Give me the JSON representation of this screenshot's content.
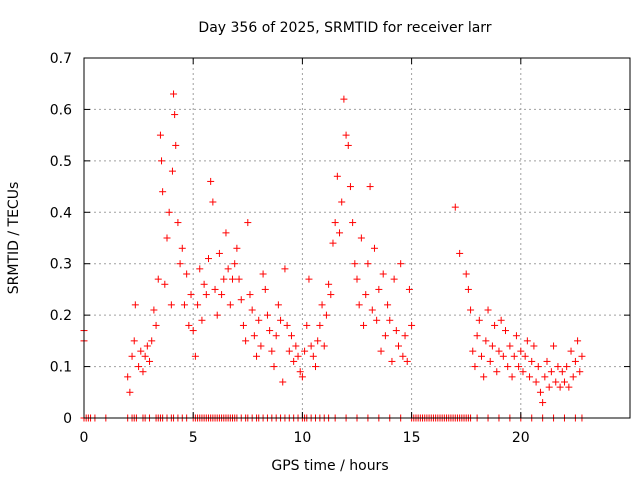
{
  "chart_data": {
    "type": "scatter",
    "title": "Day 356 of 2025, SRMTID for receiver larr",
    "xlabel": "GPS time / hours",
    "ylabel": "SRMTID / TECUs",
    "xlim": [
      0,
      25
    ],
    "ylim": [
      0,
      0.7
    ],
    "xticks": [
      0,
      5,
      10,
      15,
      20
    ],
    "yticks": [
      0,
      0.1,
      0.2,
      0.3,
      0.4,
      0.5,
      0.6,
      0.7
    ],
    "xtick_labels": [
      "0",
      "5",
      "10",
      "15",
      "20"
    ],
    "ytick_labels": [
      "0",
      "0.1",
      "0.2",
      "0.3",
      "0.4",
      "0.5",
      "0.6",
      "0.7"
    ],
    "grid": true,
    "marker": "+",
    "marker_color": "#ff0000",
    "series": [
      {
        "name": "SRMTID",
        "points": [
          [
            0.0,
            0.17
          ],
          [
            0.0,
            0.15
          ],
          [
            2.0,
            0.08
          ],
          [
            2.1,
            0.05
          ],
          [
            2.2,
            0.12
          ],
          [
            2.3,
            0.15
          ],
          [
            2.35,
            0.22
          ],
          [
            2.5,
            0.1
          ],
          [
            2.6,
            0.13
          ],
          [
            2.7,
            0.09
          ],
          [
            2.8,
            0.12
          ],
          [
            2.9,
            0.14
          ],
          [
            3.0,
            0.11
          ],
          [
            3.1,
            0.15
          ],
          [
            3.2,
            0.21
          ],
          [
            3.3,
            0.18
          ],
          [
            3.4,
            0.27
          ],
          [
            3.5,
            0.55
          ],
          [
            3.55,
            0.5
          ],
          [
            3.6,
            0.44
          ],
          [
            3.7,
            0.26
          ],
          [
            3.8,
            0.35
          ],
          [
            3.9,
            0.4
          ],
          [
            4.0,
            0.22
          ],
          [
            4.05,
            0.48
          ],
          [
            4.1,
            0.63
          ],
          [
            4.15,
            0.59
          ],
          [
            4.2,
            0.53
          ],
          [
            4.3,
            0.38
          ],
          [
            4.4,
            0.3
          ],
          [
            4.5,
            0.33
          ],
          [
            4.6,
            0.22
          ],
          [
            4.7,
            0.28
          ],
          [
            4.8,
            0.18
          ],
          [
            4.9,
            0.24
          ],
          [
            5.0,
            0.17
          ],
          [
            5.1,
            0.12
          ],
          [
            5.2,
            0.22
          ],
          [
            5.3,
            0.29
          ],
          [
            5.4,
            0.19
          ],
          [
            5.5,
            0.26
          ],
          [
            5.6,
            0.24
          ],
          [
            5.7,
            0.31
          ],
          [
            5.8,
            0.46
          ],
          [
            5.9,
            0.42
          ],
          [
            6.0,
            0.25
          ],
          [
            6.1,
            0.2
          ],
          [
            6.2,
            0.32
          ],
          [
            6.3,
            0.24
          ],
          [
            6.4,
            0.27
          ],
          [
            6.5,
            0.36
          ],
          [
            6.6,
            0.29
          ],
          [
            6.7,
            0.22
          ],
          [
            6.8,
            0.27
          ],
          [
            6.9,
            0.3
          ],
          [
            7.0,
            0.33
          ],
          [
            7.1,
            0.27
          ],
          [
            7.2,
            0.23
          ],
          [
            7.3,
            0.18
          ],
          [
            7.4,
            0.15
          ],
          [
            7.5,
            0.38
          ],
          [
            7.6,
            0.24
          ],
          [
            7.7,
            0.21
          ],
          [
            7.8,
            0.16
          ],
          [
            7.9,
            0.12
          ],
          [
            8.0,
            0.19
          ],
          [
            8.1,
            0.14
          ],
          [
            8.2,
            0.28
          ],
          [
            8.3,
            0.25
          ],
          [
            8.4,
            0.2
          ],
          [
            8.5,
            0.17
          ],
          [
            8.6,
            0.13
          ],
          [
            8.7,
            0.1
          ],
          [
            8.8,
            0.16
          ],
          [
            8.9,
            0.22
          ],
          [
            9.0,
            0.19
          ],
          [
            9.1,
            0.07
          ],
          [
            9.2,
            0.29
          ],
          [
            9.3,
            0.18
          ],
          [
            9.4,
            0.13
          ],
          [
            9.5,
            0.16
          ],
          [
            9.6,
            0.11
          ],
          [
            9.7,
            0.14
          ],
          [
            9.8,
            0.12
          ],
          [
            9.9,
            0.09
          ],
          [
            10.0,
            0.08
          ],
          [
            10.1,
            0.13
          ],
          [
            10.2,
            0.18
          ],
          [
            10.3,
            0.27
          ],
          [
            10.4,
            0.14
          ],
          [
            10.5,
            0.12
          ],
          [
            10.6,
            0.1
          ],
          [
            10.7,
            0.15
          ],
          [
            10.8,
            0.18
          ],
          [
            10.9,
            0.22
          ],
          [
            11.0,
            0.14
          ],
          [
            11.1,
            0.2
          ],
          [
            11.2,
            0.26
          ],
          [
            11.3,
            0.24
          ],
          [
            11.4,
            0.34
          ],
          [
            11.5,
            0.38
          ],
          [
            11.6,
            0.47
          ],
          [
            11.7,
            0.36
          ],
          [
            11.8,
            0.42
          ],
          [
            11.9,
            0.62
          ],
          [
            12.0,
            0.55
          ],
          [
            12.1,
            0.53
          ],
          [
            12.2,
            0.45
          ],
          [
            12.3,
            0.38
          ],
          [
            12.4,
            0.3
          ],
          [
            12.5,
            0.27
          ],
          [
            12.6,
            0.22
          ],
          [
            12.7,
            0.35
          ],
          [
            12.8,
            0.18
          ],
          [
            12.9,
            0.24
          ],
          [
            13.0,
            0.3
          ],
          [
            13.1,
            0.45
          ],
          [
            13.2,
            0.21
          ],
          [
            13.3,
            0.33
          ],
          [
            13.4,
            0.19
          ],
          [
            13.5,
            0.25
          ],
          [
            13.6,
            0.13
          ],
          [
            13.7,
            0.28
          ],
          [
            13.8,
            0.16
          ],
          [
            13.9,
            0.22
          ],
          [
            14.0,
            0.19
          ],
          [
            14.1,
            0.11
          ],
          [
            14.2,
            0.27
          ],
          [
            14.3,
            0.17
          ],
          [
            14.4,
            0.14
          ],
          [
            14.5,
            0.3
          ],
          [
            14.6,
            0.12
          ],
          [
            14.7,
            0.16
          ],
          [
            14.8,
            0.11
          ],
          [
            14.9,
            0.25
          ],
          [
            15.0,
            0.18
          ],
          [
            17.0,
            0.41
          ],
          [
            17.2,
            0.32
          ],
          [
            17.5,
            0.28
          ],
          [
            17.6,
            0.25
          ],
          [
            17.7,
            0.21
          ],
          [
            17.8,
            0.13
          ],
          [
            17.9,
            0.1
          ],
          [
            18.0,
            0.16
          ],
          [
            18.1,
            0.19
          ],
          [
            18.2,
            0.12
          ],
          [
            18.3,
            0.08
          ],
          [
            18.4,
            0.15
          ],
          [
            18.5,
            0.21
          ],
          [
            18.6,
            0.11
          ],
          [
            18.7,
            0.14
          ],
          [
            18.8,
            0.18
          ],
          [
            18.9,
            0.09
          ],
          [
            19.0,
            0.13
          ],
          [
            19.1,
            0.19
          ],
          [
            19.2,
            0.12
          ],
          [
            19.3,
            0.17
          ],
          [
            19.4,
            0.1
          ],
          [
            19.5,
            0.14
          ],
          [
            19.6,
            0.08
          ],
          [
            19.7,
            0.12
          ],
          [
            19.8,
            0.16
          ],
          [
            19.9,
            0.1
          ],
          [
            20.0,
            0.13
          ],
          [
            20.1,
            0.09
          ],
          [
            20.2,
            0.12
          ],
          [
            20.3,
            0.15
          ],
          [
            20.4,
            0.08
          ],
          [
            20.5,
            0.11
          ],
          [
            20.6,
            0.14
          ],
          [
            20.7,
            0.07
          ],
          [
            20.8,
            0.1
          ],
          [
            20.9,
            0.05
          ],
          [
            21.0,
            0.03
          ],
          [
            21.1,
            0.08
          ],
          [
            21.2,
            0.11
          ],
          [
            21.3,
            0.06
          ],
          [
            21.4,
            0.09
          ],
          [
            21.5,
            0.14
          ],
          [
            21.6,
            0.07
          ],
          [
            21.7,
            0.1
          ],
          [
            21.8,
            0.06
          ],
          [
            21.9,
            0.09
          ],
          [
            22.0,
            0.07
          ],
          [
            22.1,
            0.1
          ],
          [
            22.2,
            0.06
          ],
          [
            22.3,
            0.13
          ],
          [
            22.4,
            0.08
          ],
          [
            22.5,
            0.11
          ],
          [
            22.6,
            0.15
          ],
          [
            22.7,
            0.09
          ],
          [
            22.8,
            0.12
          ]
        ],
        "zero_points": [
          0.0,
          0.1,
          0.2,
          0.3,
          0.5,
          1.0,
          2.0,
          2.2,
          2.3,
          2.4,
          2.7,
          2.8,
          3.0,
          3.3,
          3.4,
          3.5,
          3.6,
          3.8,
          4.0,
          4.1,
          4.3,
          4.5,
          4.7,
          5.0,
          5.1,
          5.2,
          5.3,
          5.4,
          5.5,
          5.6,
          5.7,
          5.8,
          5.9,
          6.0,
          6.1,
          6.2,
          6.3,
          6.4,
          6.5,
          6.6,
          6.7,
          6.8,
          6.9,
          7.0,
          7.2,
          7.4,
          7.5,
          7.7,
          7.9,
          8.0,
          8.2,
          8.4,
          8.6,
          8.8,
          9.0,
          9.2,
          9.4,
          9.6,
          9.8,
          10.0,
          10.1,
          10.2,
          10.4,
          10.6,
          10.8,
          11.0,
          11.2,
          11.5,
          12.0,
          12.5,
          13.0,
          13.5,
          14.0,
          14.5,
          15.0,
          15.1,
          15.2,
          15.3,
          15.4,
          15.5,
          15.6,
          15.7,
          15.8,
          15.9,
          16.0,
          16.1,
          16.2,
          16.3,
          16.4,
          16.5,
          16.6,
          16.7,
          16.8,
          16.9,
          17.0,
          17.1,
          17.2,
          17.3,
          17.4,
          17.5,
          17.6,
          17.7,
          18.0,
          18.5,
          19.0,
          19.5,
          20.0,
          20.5,
          21.0,
          21.5,
          22.0,
          22.5,
          22.8
        ]
      }
    ]
  }
}
